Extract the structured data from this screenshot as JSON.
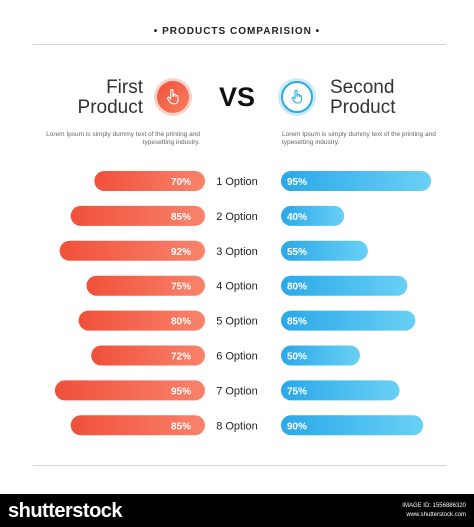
{
  "header": {
    "title": "PRODUCTS COMPARISION"
  },
  "products": {
    "first": {
      "line1": "First",
      "line2": "Product",
      "color_start": "#f0503a",
      "color_end": "#f9836c"
    },
    "second": {
      "line1": "Second",
      "line2": "Product",
      "color_start": "#2aa8e8",
      "color_end": "#69d0f5"
    },
    "vs_label": "VS",
    "description": "Lorem Ipsum is simply dummy text of the printing and typesetting industry."
  },
  "icons": {
    "first": "hand-pointer-icon",
    "second": "hand-pointer-icon"
  },
  "chart_data": {
    "type": "bar",
    "categories": [
      "1 Option",
      "2 Option",
      "3 Option",
      "4 Option",
      "5 Option",
      "6 Option",
      "7 Option",
      "8 Option"
    ],
    "series": [
      {
        "name": "First Product",
        "values": [
          70,
          85,
          92,
          75,
          80,
          72,
          95,
          85
        ],
        "value_labels": [
          "70%",
          "85%",
          "92%",
          "75%",
          "80%",
          "72%",
          "95%",
          "85%"
        ]
      },
      {
        "name": "Second Product",
        "values": [
          95,
          40,
          55,
          80,
          85,
          50,
          75,
          90
        ],
        "value_labels": [
          "95%",
          "40%",
          "55%",
          "80%",
          "85%",
          "50%",
          "75%",
          "90%"
        ]
      }
    ]
  },
  "footer": {
    "brand": "shutterstock",
    "image_id_line": "IMAGE ID: 1556886320",
    "site": "www.shutterstock.com"
  }
}
